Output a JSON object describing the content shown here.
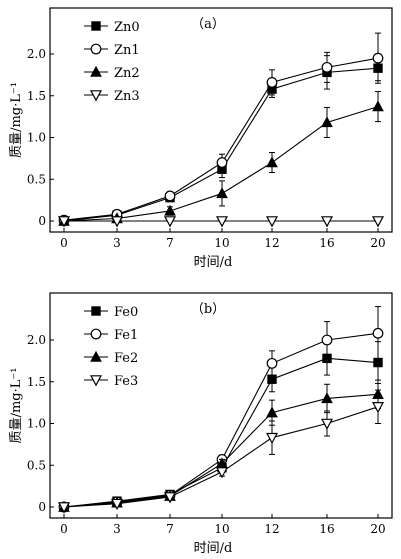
{
  "chart_data": [
    {
      "type": "line",
      "panel_label": "（a）",
      "xlabel": "时间/d",
      "ylabel": "质量/mg·L⁻¹",
      "x": [
        0,
        3,
        7,
        10,
        12,
        16,
        20
      ],
      "xticks": [
        "0",
        "3",
        "7",
        "10",
        "12",
        "16",
        "20"
      ],
      "yticks": [
        "0",
        "0.5",
        "1.0",
        "1.5",
        "2.0"
      ],
      "ylim": [
        0,
        2.45
      ],
      "legend_position": "top-left",
      "series": [
        {
          "name": "Zn0",
          "marker": "filled-square",
          "values": [
            0,
            0.07,
            0.28,
            0.62,
            1.58,
            1.78,
            1.83
          ],
          "errors": [
            0,
            0.02,
            0.05,
            0.1,
            0.1,
            0.2,
            0.15
          ]
        },
        {
          "name": "Zn1",
          "marker": "open-circle",
          "values": [
            0.01,
            0.08,
            0.3,
            0.7,
            1.66,
            1.84,
            1.95
          ],
          "errors": [
            0,
            0.02,
            0.05,
            0.1,
            0.15,
            0.18,
            0.3
          ]
        },
        {
          "name": "Zn2",
          "marker": "filled-triangle-up",
          "values": [
            0,
            0.03,
            0.12,
            0.33,
            0.7,
            1.18,
            1.37
          ],
          "errors": [
            0,
            0.02,
            0.05,
            0.15,
            0.12,
            0.18,
            0.18
          ]
        },
        {
          "name": "Zn3",
          "marker": "open-triangle-down",
          "values": [
            0,
            0,
            0,
            0,
            0,
            0,
            0
          ],
          "errors": [
            0,
            0,
            0,
            0,
            0,
            0,
            0
          ]
        }
      ]
    },
    {
      "type": "line",
      "panel_label": "（b）",
      "xlabel": "时间/d",
      "ylabel": "质量/mg·L⁻¹",
      "x": [
        0,
        3,
        7,
        10,
        12,
        16,
        20
      ],
      "xticks": [
        "0",
        "3",
        "7",
        "10",
        "12",
        "16",
        "20"
      ],
      "yticks": [
        "0",
        "0.5",
        "1.0",
        "1.5",
        "2.0"
      ],
      "ylim": [
        0,
        2.45
      ],
      "legend_position": "top-left",
      "series": [
        {
          "name": "Fe0",
          "marker": "filled-square",
          "values": [
            0,
            0.07,
            0.15,
            0.47,
            1.53,
            1.78,
            1.73
          ],
          "errors": [
            0,
            0.03,
            0.03,
            0.05,
            0.15,
            0.2,
            0.25
          ]
        },
        {
          "name": "Fe1",
          "marker": "open-circle",
          "values": [
            0,
            0.06,
            0.14,
            0.57,
            1.72,
            2.0,
            2.08
          ],
          "errors": [
            0,
            0.02,
            0.03,
            0.05,
            0.15,
            0.22,
            0.32
          ]
        },
        {
          "name": "Fe2",
          "marker": "filled-triangle-up",
          "values": [
            0,
            0.05,
            0.13,
            0.52,
            1.13,
            1.3,
            1.35
          ],
          "errors": [
            0,
            0.02,
            0.03,
            0.05,
            0.15,
            0.17,
            0.17
          ]
        },
        {
          "name": "Fe3",
          "marker": "open-triangle-down",
          "values": [
            0,
            0.04,
            0.12,
            0.42,
            0.83,
            1.0,
            1.2
          ],
          "errors": [
            0,
            0.02,
            0.03,
            0.05,
            0.2,
            0.15,
            0.2
          ]
        }
      ]
    }
  ]
}
